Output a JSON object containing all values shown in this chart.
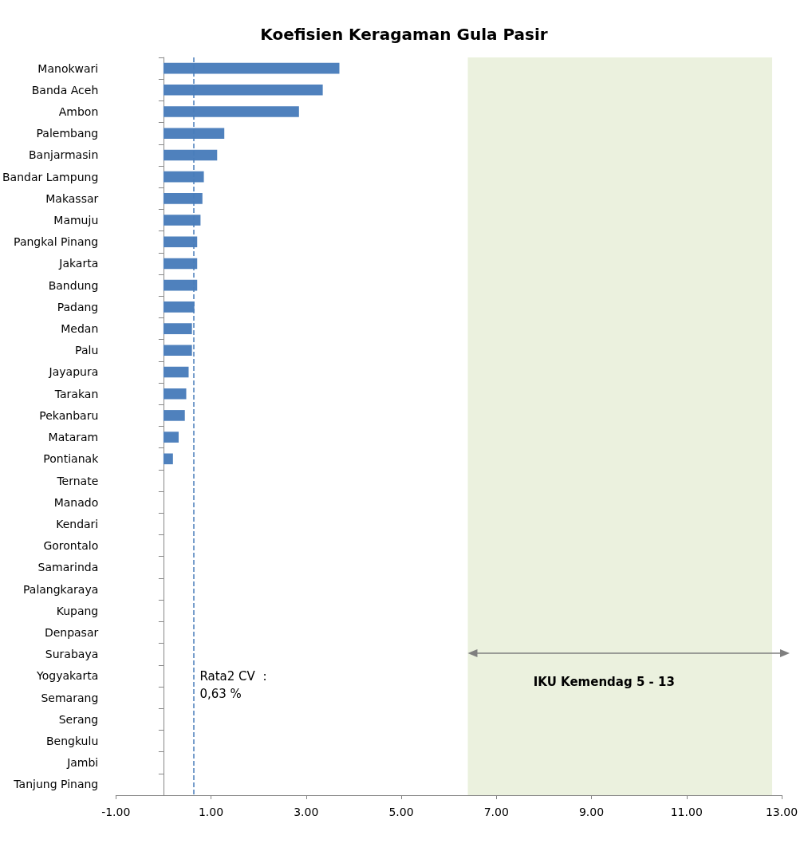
{
  "chart_data": {
    "type": "bar",
    "orientation": "horizontal",
    "title": "Koefisien Keragaman Gula Pasir",
    "categories": [
      "Manokwari",
      "Banda Aceh",
      "Ambon",
      "Palembang",
      "Banjarmasin",
      "Bandar Lampung",
      "Makassar",
      "Mamuju",
      "Pangkal Pinang",
      "Jakarta",
      "Bandung",
      "Padang",
      "Medan",
      "Palu",
      "Jayapura",
      "Tarakan",
      "Pekanbaru",
      "Mataram",
      "Pontianak",
      "Ternate",
      "Manado",
      "Kendari",
      "Gorontalo",
      "Samarinda",
      "Palangkaraya",
      "Kupang",
      "Denpasar",
      "Surabaya",
      "Yogyakarta",
      "Semarang",
      "Serang",
      "Bengkulu",
      "Jambi",
      "Tanjung Pinang"
    ],
    "values": [
      3.7,
      3.35,
      2.85,
      1.28,
      1.13,
      0.85,
      0.82,
      0.78,
      0.71,
      0.71,
      0.71,
      0.65,
      0.6,
      0.6,
      0.53,
      0.48,
      0.45,
      0.32,
      0.2,
      0,
      0,
      0,
      0,
      0,
      0,
      0,
      0,
      0,
      0,
      0,
      0,
      0,
      0,
      0
    ],
    "color": "#4f81bd",
    "xlim": [
      -1,
      13
    ],
    "xticks": [
      {
        "value": -1,
        "label": "-1.00"
      },
      {
        "value": 1,
        "label": "1.00"
      },
      {
        "value": 3,
        "label": "3.00"
      },
      {
        "value": 5,
        "label": "5.00"
      },
      {
        "value": 7,
        "label": "7.00"
      },
      {
        "value": 9,
        "label": "9.00"
      },
      {
        "value": 11,
        "label": "11.00"
      },
      {
        "value": 13,
        "label": "13.00"
      }
    ],
    "grid": false,
    "ref_lines": [
      {
        "axis": "x",
        "value": 0.63,
        "label": "Rata2 CV  :\n0,63 %",
        "color": "#4a7ebb",
        "line_style": "dashed"
      }
    ],
    "bands": [
      {
        "axis": "x",
        "from": 6.4,
        "to": 12.8,
        "label": "IKU Kemendag 5 - 13",
        "color": "#ebf1de"
      }
    ]
  }
}
